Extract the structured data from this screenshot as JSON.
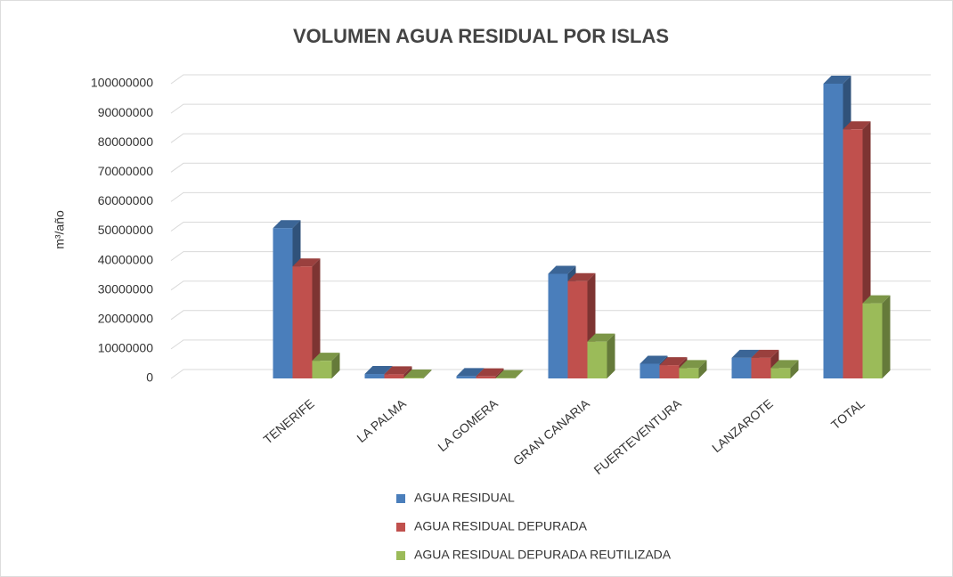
{
  "chart_data": {
    "type": "bar3d",
    "title": "VOLUMEN AGUA RESIDUAL POR ISLAS",
    "y_label": "m³/año",
    "categories": [
      null,
      "TENERIFE",
      "LA PALMA",
      "LA GOMERA",
      "GRAN CANARIA",
      "FUERTEVENTURA",
      "LANZAROTE",
      "TOTAL"
    ],
    "series": [
      {
        "name": "AGUA RESIDUAL",
        "color": "#4a7ebb",
        "values": [
          null,
          51000000,
          1500000,
          800000,
          35500000,
          5000000,
          7000000,
          100000000
        ]
      },
      {
        "name": "AGUA RESIDUAL DEPURADA",
        "color": "#c0504d",
        "values": [
          null,
          38000000,
          1400000,
          700000,
          33000000,
          4500000,
          7000000,
          84500000
        ]
      },
      {
        "name": "AGUA RESIDUAL DEPURADA REUTILIZADA",
        "color": "#9bbb59",
        "values": [
          null,
          6000000,
          300000,
          100000,
          12500000,
          3500000,
          3500000,
          25500000
        ]
      }
    ],
    "ylim": [
      0,
      100000000
    ],
    "yticks": [
      0,
      10000000,
      20000000,
      30000000,
      40000000,
      50000000,
      60000000,
      70000000,
      80000000,
      90000000,
      100000000
    ],
    "grid": true
  }
}
